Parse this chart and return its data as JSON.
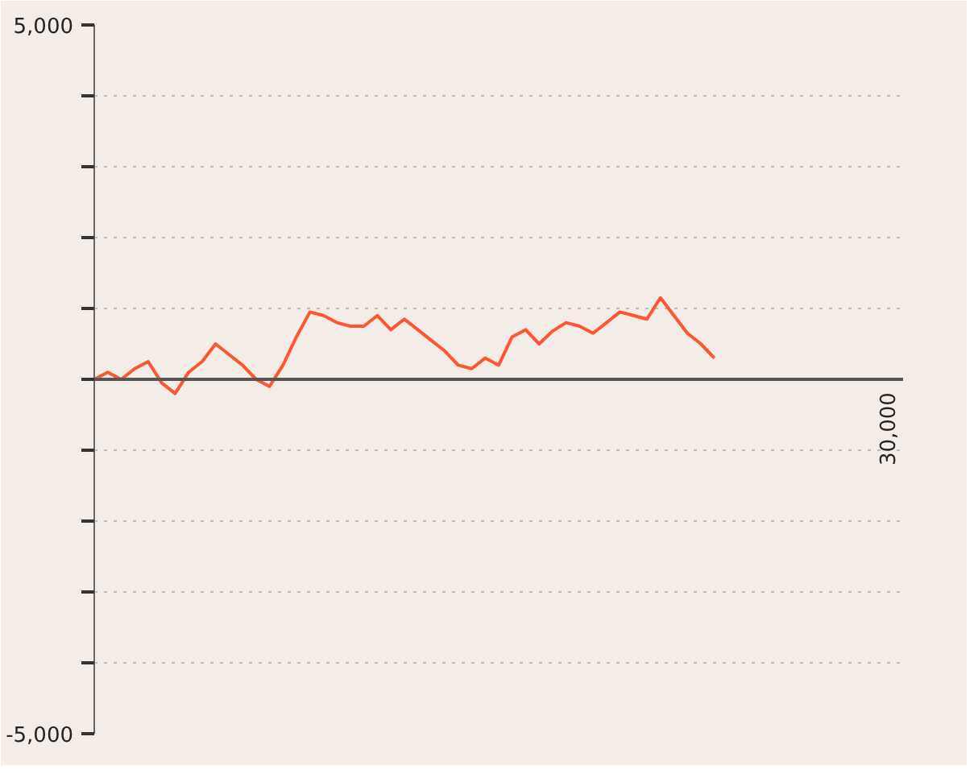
{
  "chart_data": {
    "type": "line",
    "categories": [
      null,
      null,
      null,
      null,
      null,
      null,
      null,
      null,
      null,
      null,
      null,
      null,
      null,
      null,
      null,
      null,
      null,
      null,
      null,
      null,
      null,
      null,
      null,
      null,
      null,
      null,
      null,
      null,
      null,
      null,
      null,
      null,
      null,
      null,
      null,
      null,
      null,
      null,
      null,
      null,
      null,
      null,
      null,
      null,
      null,
      null,
      null,
      null,
      null,
      null,
      null,
      null,
      null,
      null,
      null,
      null,
      null,
      null,
      null,
      null,
      null
    ],
    "series": [
      {
        "color": "#ff5533",
        "values": [
          0,
          100,
          0,
          150,
          250,
          -50,
          -200,
          100,
          250,
          500,
          350,
          200,
          0,
          -100,
          200,
          600,
          950,
          900,
          800,
          750,
          750,
          900,
          700,
          850,
          700,
          550,
          400,
          200,
          150,
          300,
          200,
          600,
          700,
          500,
          680,
          800,
          750,
          650,
          800,
          950,
          900,
          850,
          1150,
          900,
          650,
          500,
          300,
          null,
          null,
          null,
          null,
          null,
          null,
          null,
          null,
          null,
          null,
          null,
          null,
          null,
          null
        ]
      }
    ],
    "annotations": [
      "30,000"
    ],
    "ylim": [
      -5000,
      5000
    ],
    "yticks": [
      {
        "value": -5000,
        "label": "-5,000"
      },
      {
        "value": -4000,
        "label": null
      },
      {
        "value": -3000,
        "label": null
      },
      {
        "value": -2000,
        "label": null
      },
      {
        "value": -1000,
        "label": null
      },
      {
        "value": 0,
        "label": null
      },
      {
        "value": 1000,
        "label": null
      },
      {
        "value": 2000,
        "label": null
      },
      {
        "value": 3000,
        "label": null
      },
      {
        "value": 4000,
        "label": null
      },
      {
        "value": 5000,
        "label": "5,000"
      }
    ],
    "grid": "y",
    "ref_lines": [
      {
        "axis": "y",
        "value": 0,
        "color": "#555555"
      }
    ],
    "marker": "none",
    "line_style": "solid"
  }
}
